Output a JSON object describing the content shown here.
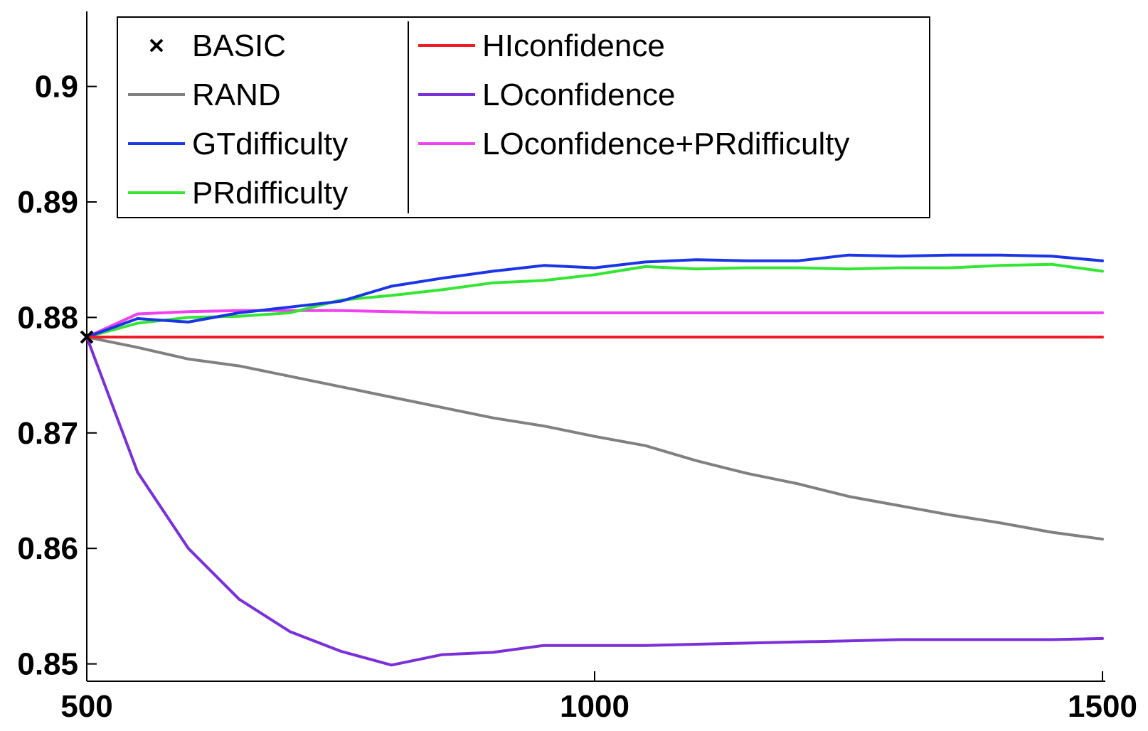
{
  "chart_data": {
    "type": "line",
    "title": "",
    "xlabel": "",
    "ylabel": "",
    "xlim": [
      500,
      1500
    ],
    "ylim": [
      0.8485,
      0.9065
    ],
    "x_ticks": [
      500,
      1000,
      1500
    ],
    "x_tick_labels": [
      "500",
      "1000",
      "1500"
    ],
    "y_ticks": [
      0.85,
      0.86,
      0.87,
      0.88,
      0.89,
      0.9
    ],
    "y_tick_labels": [
      "0.85",
      "0.86",
      "0.87",
      "0.88",
      "0.89",
      "0.9"
    ],
    "grid": false,
    "legend_position": "top-left",
    "x": [
      500,
      550,
      600,
      650,
      700,
      750,
      800,
      850,
      900,
      950,
      1000,
      1050,
      1100,
      1150,
      1200,
      1250,
      1300,
      1350,
      1400,
      1450,
      1500
    ],
    "markers": [
      {
        "name": "BASIC",
        "x": 500,
        "y": 0.8783,
        "color": "#000000",
        "symbol": "x"
      }
    ],
    "series": [
      {
        "name": "RAND",
        "color": "#808080",
        "values": [
          0.8783,
          0.8774,
          0.8764,
          0.8758,
          0.8749,
          0.874,
          0.8731,
          0.8722,
          0.8713,
          0.8706,
          0.8697,
          0.8689,
          0.8676,
          0.8665,
          0.8656,
          0.8645,
          0.8637,
          0.8629,
          0.8622,
          0.8614,
          0.8608
        ]
      },
      {
        "name": "GTdifficulty",
        "color": "#1a35e6",
        "values": [
          0.8783,
          0.8799,
          0.8796,
          0.8804,
          0.8809,
          0.8814,
          0.8827,
          0.8834,
          0.884,
          0.8845,
          0.8843,
          0.8848,
          0.885,
          0.8849,
          0.8849,
          0.8854,
          0.8853,
          0.8854,
          0.8854,
          0.8853,
          0.8849
        ]
      },
      {
        "name": "PRdifficulty",
        "color": "#33e633",
        "values": [
          0.8783,
          0.8795,
          0.88,
          0.8801,
          0.8804,
          0.8815,
          0.8819,
          0.8824,
          0.883,
          0.8832,
          0.8837,
          0.8844,
          0.8842,
          0.8843,
          0.8843,
          0.8842,
          0.8843,
          0.8843,
          0.8845,
          0.8846,
          0.884
        ]
      },
      {
        "name": "HIconfidence",
        "color": "#ee1c24",
        "values": [
          0.8783,
          0.8783,
          0.8783,
          0.8783,
          0.8783,
          0.8783,
          0.8783,
          0.8783,
          0.8783,
          0.8783,
          0.8783,
          0.8783,
          0.8783,
          0.8783,
          0.8783,
          0.8783,
          0.8783,
          0.8783,
          0.8783,
          0.8783,
          0.8783
        ]
      },
      {
        "name": "LOconfidence",
        "color": "#7a2fd9",
        "values": [
          0.8783,
          0.8666,
          0.86,
          0.8556,
          0.8528,
          0.8511,
          0.8499,
          0.8508,
          0.851,
          0.8516,
          0.8516,
          0.8516,
          0.8517,
          0.8518,
          0.8519,
          0.852,
          0.8521,
          0.8521,
          0.8521,
          0.8521,
          0.8522
        ]
      },
      {
        "name": "LOconfidence+PRdifficulty",
        "color": "#f040f0",
        "values": [
          0.8783,
          0.8803,
          0.8805,
          0.8806,
          0.8806,
          0.8806,
          0.8805,
          0.8804,
          0.8804,
          0.8804,
          0.8804,
          0.8804,
          0.8804,
          0.8804,
          0.8804,
          0.8804,
          0.8804,
          0.8804,
          0.8804,
          0.8804,
          0.8804
        ]
      }
    ],
    "legend": {
      "columns": [
        [
          "BASIC",
          "RAND",
          "GTdifficulty",
          "PRdifficulty"
        ],
        [
          "HIconfidence",
          "LOconfidence",
          "LOconfidence+PRdifficulty"
        ]
      ]
    }
  }
}
